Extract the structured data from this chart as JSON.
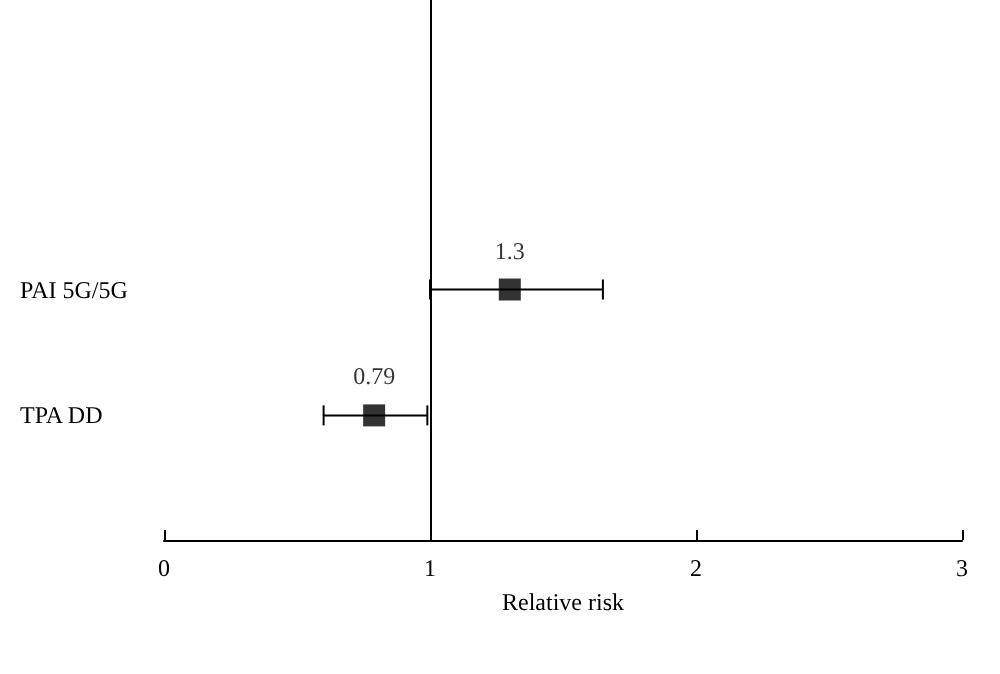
{
  "chart_data": {
    "type": "scatter",
    "orientation": "horizontal",
    "xlabel": "Relative risk",
    "categories": [
      "PAI 5G/5G",
      "TPA DD"
    ],
    "values": [
      1.3,
      0.79
    ],
    "errors": [
      [
        1.0,
        1.65
      ],
      [
        0.6,
        0.99
      ]
    ],
    "color": "#000000",
    "marker": "square",
    "data_labels": true,
    "xlim": [
      0,
      3
    ],
    "xticks": [
      0,
      1,
      2,
      3
    ],
    "ref_lines": [
      {
        "axis": "x",
        "value": 1
      }
    ],
    "grid": false
  }
}
